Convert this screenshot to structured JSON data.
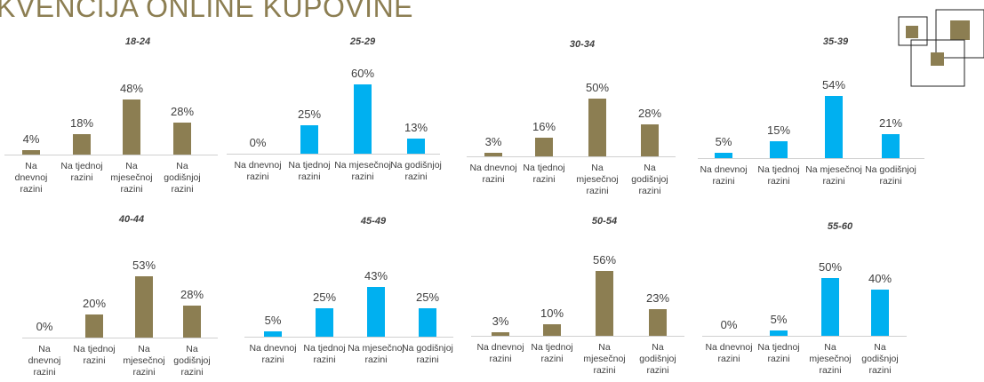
{
  "header": {
    "title": "KVENCIJA ONLINE KUPOVINE"
  },
  "chart_data": [
    {
      "type": "bar",
      "title": "18-24",
      "color": "#8c7e52",
      "categories": [
        "Na dnevnoj razini",
        "Na tjednoj razini",
        "Na mjesečnoj razini",
        "Na godišnjoj razini"
      ],
      "values": [
        4,
        18,
        48,
        28
      ],
      "value_labels": [
        "4%",
        "18%",
        "48%",
        "28%"
      ]
    },
    {
      "type": "bar",
      "title": "25-29",
      "color": "#00b0f0",
      "categories": [
        "Na dnevnoj razini",
        "Na tjednoj razini",
        "Na mjesečnoj razini",
        "Na godišnjoj razini"
      ],
      "values": [
        0,
        25,
        60,
        13
      ],
      "value_labels": [
        "0%",
        "25%",
        "60%",
        "13%"
      ]
    },
    {
      "type": "bar",
      "title": "30-34",
      "color": "#8c7e52",
      "categories": [
        "Na dnevnoj razini",
        "Na tjednoj razini",
        "Na mjesečnoj razini",
        "Na godišnjoj razini"
      ],
      "values": [
        3,
        16,
        50,
        28
      ],
      "value_labels": [
        "3%",
        "16%",
        "50%",
        "28%"
      ]
    },
    {
      "type": "bar",
      "title": "35-39",
      "color": "#00b0f0",
      "categories": [
        "Na dnevnoj razini",
        "Na tjednoj razini",
        "Na mjesečnoj razini",
        "Na godišnjoj razini"
      ],
      "values": [
        5,
        15,
        54,
        21
      ],
      "value_labels": [
        "5%",
        "15%",
        "54%",
        "21%"
      ]
    },
    {
      "type": "bar",
      "title": "40-44",
      "color": "#8c7e52",
      "categories": [
        "Na dnevnoj razini",
        "Na tjednoj razini",
        "Na mjesečnoj razini",
        "Na godišnjoj razini"
      ],
      "values": [
        0,
        20,
        53,
        28
      ],
      "value_labels": [
        "0%",
        "20%",
        "53%",
        "28%"
      ]
    },
    {
      "type": "bar",
      "title": "45-49",
      "color": "#00b0f0",
      "categories": [
        "Na dnevnoj razini",
        "Na tjednoj razini",
        "Na mjesečnoj razini",
        "Na godišnjoj razini"
      ],
      "values": [
        5,
        25,
        43,
        25
      ],
      "value_labels": [
        "5%",
        "25%",
        "43%",
        "25%"
      ]
    },
    {
      "type": "bar",
      "title": "50-54",
      "color": "#8c7e52",
      "categories": [
        "Na dnevnoj razini",
        "Na tjednoj razini",
        "Na mjesečnoj razini",
        "Na godišnjoj razini"
      ],
      "values": [
        3,
        10,
        56,
        23
      ],
      "value_labels": [
        "3%",
        "10%",
        "56%",
        "23%"
      ]
    },
    {
      "type": "bar",
      "title": "55-60",
      "color": "#00b0f0",
      "categories": [
        "Na dnevnoj razini",
        "Na tjednoj razini",
        "Na mjesečnoj razini",
        "Na godišnjoj razini"
      ],
      "values": [
        0,
        5,
        50,
        40
      ],
      "value_labels": [
        "0%",
        "5%",
        "50%",
        "40%"
      ]
    }
  ]
}
